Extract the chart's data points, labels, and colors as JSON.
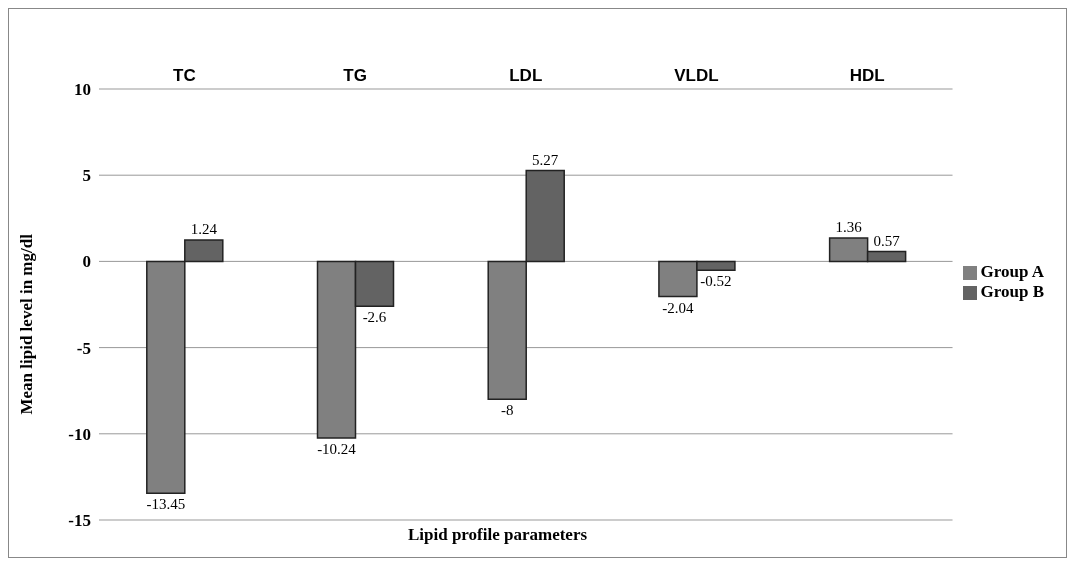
{
  "chart_data": {
    "type": "bar",
    "xlabel": "Lipid profile parameters",
    "ylabel": "Mean lipid level in mg/dl",
    "categories": [
      "TC",
      "TG",
      "LDL",
      "VLDL",
      "HDL"
    ],
    "series": [
      {
        "name": "Group A",
        "color": "#808080",
        "values": [
          -13.45,
          -10.24,
          -8,
          -2.04,
          1.36
        ]
      },
      {
        "name": "Group B",
        "color": "#636363",
        "values": [
          1.24,
          -2.6,
          5.27,
          -0.52,
          0.57
        ]
      }
    ],
    "ylim": [
      -15,
      10
    ],
    "yticks": [
      -15,
      -10,
      -5,
      0,
      5,
      10
    ],
    "grid": "y",
    "legend": "right",
    "data_labels": true
  }
}
